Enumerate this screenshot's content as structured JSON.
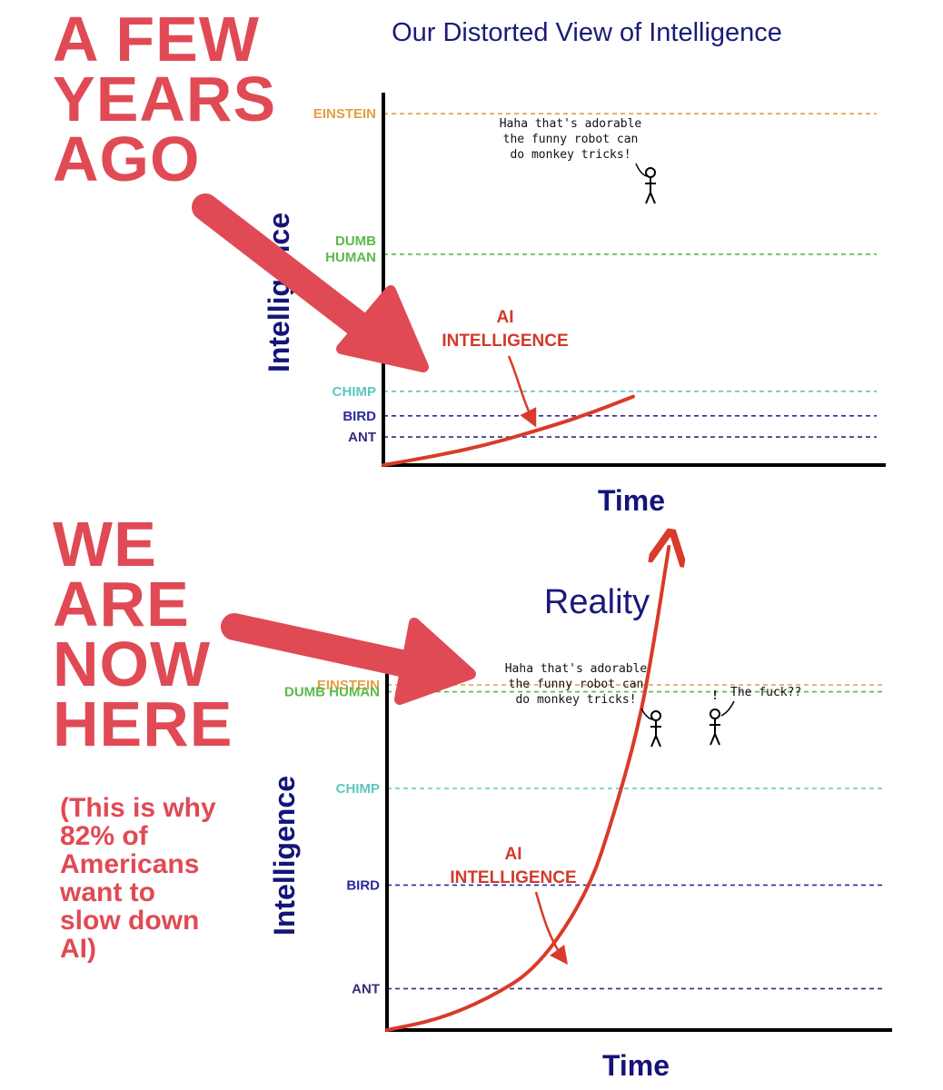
{
  "left_text": {
    "top_lines": [
      "A FEW",
      "YEARS",
      "AGO"
    ],
    "bottom_lines": [
      "WE",
      "ARE",
      "NOW",
      "HERE"
    ],
    "note_lines": [
      "(This is why",
      "82% of",
      "Americans",
      "want to",
      "slow down",
      "AI)"
    ]
  },
  "colors": {
    "arrow": "#e04a55",
    "curve": "#d93a2a",
    "einstein": "#e0a040",
    "dumb_human": "#5cb84a",
    "chimp": "#5cc8c0",
    "bird": "#2a2a9a",
    "ant": "#3a2a7a"
  },
  "chart_data": [
    {
      "type": "line",
      "title": "Our Distorted View of Intelligence",
      "xlabel": "Time",
      "ylabel": "Intelligence",
      "levels": [
        {
          "name": "EINSTEIN",
          "value": 100,
          "color": "#e0a040"
        },
        {
          "name": "DUMB HUMAN",
          "value": 60,
          "color": "#5cb84a"
        },
        {
          "name": "CHIMP",
          "value": 21,
          "color": "#5cc8c0"
        },
        {
          "name": "BIRD",
          "value": 14,
          "color": "#2a2a9a"
        },
        {
          "name": "ANT",
          "value": 8,
          "color": "#3a2a7a"
        }
      ],
      "series": [
        {
          "name": "AI INTELLIGENCE",
          "x": [
            0,
            10,
            20,
            30,
            40,
            50
          ],
          "y": [
            0,
            2.5,
            5.5,
            9.5,
            14,
            19.5
          ]
        }
      ],
      "ylim": [
        0,
        106
      ],
      "xlim": [
        0,
        100
      ],
      "speech": [
        "Haha that's adorable",
        "the funny robot can",
        "do monkey tricks!"
      ]
    },
    {
      "type": "line",
      "title": "Reality",
      "xlabel": "Time",
      "ylabel": "Intelligence",
      "levels": [
        {
          "name": "EINSTEIN",
          "value": 100,
          "color": "#e0a040"
        },
        {
          "name": "DUMB HUMAN",
          "value": 98,
          "color": "#5cb84a"
        },
        {
          "name": "CHIMP",
          "value": 70,
          "color": "#5cc8c0"
        },
        {
          "name": "BIRD",
          "value": 42,
          "color": "#2a2a9a"
        },
        {
          "name": "ANT",
          "value": 12,
          "color": "#3a2a7a"
        }
      ],
      "series": [
        {
          "name": "AI INTELLIGENCE",
          "x": [
            0,
            10,
            20,
            30,
            40,
            45,
            50,
            53,
            56
          ],
          "y": [
            0,
            3,
            9,
            18,
            40,
            62,
            88,
            112,
            140
          ]
        }
      ],
      "ylim": [
        0,
        140
      ],
      "xlim": [
        0,
        100
      ],
      "speech": [
        "Haha that's adorable",
        "the funny robot can",
        "do monkey tricks!"
      ],
      "speech2": "The fuck??",
      "exclaim": "!"
    }
  ]
}
